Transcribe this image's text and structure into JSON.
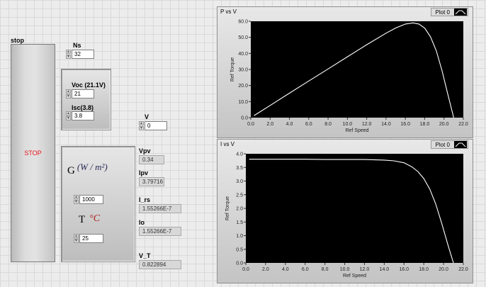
{
  "stop": {
    "label": "stop",
    "button_text": "STOP"
  },
  "ns": {
    "label": "Ns",
    "value": "32"
  },
  "voc": {
    "label": "Voc (21.1V)",
    "value": "21"
  },
  "isc": {
    "label": "Isc(3.8)",
    "value": "3.8"
  },
  "v": {
    "label": "V",
    "value": "0"
  },
  "g": {
    "symbol": "G",
    "unit": "(W / m²)",
    "value": "1000"
  },
  "t": {
    "symbol": "T",
    "unit": "°C",
    "value": "25"
  },
  "indicators": {
    "vpv": {
      "label": "Vpv",
      "value": "0.34"
    },
    "ipv": {
      "label": "Ipv",
      "value": "3.79716"
    },
    "i_rs": {
      "label": "I_rs",
      "value": "1.55266E-7"
    },
    "io": {
      "label": "Io",
      "value": "1.55266E-7"
    },
    "v_t": {
      "label": "V_T",
      "value": "0.822894"
    }
  },
  "colors": {
    "plot_bg": "#000000",
    "trace": "#ffffff",
    "stop_text": "#e8141b"
  },
  "charts": {
    "pv": {
      "title": "P vs V",
      "legend": "Plot 0"
    },
    "iv": {
      "title": "I vs V",
      "legend": "Plot 0"
    }
  },
  "chart_data": [
    {
      "type": "line",
      "title": "P vs V",
      "xlabel": "Ref  Speed",
      "ylabel": "Ref Torque",
      "xlim": [
        0,
        22
      ],
      "ylim": [
        0,
        60
      ],
      "xticks": [
        0.0,
        2.0,
        4.0,
        6.0,
        8.0,
        10.0,
        12.0,
        14.0,
        16.0,
        18.0,
        20.0,
        22.0
      ],
      "yticks": [
        0.0,
        10.0,
        20.0,
        30.0,
        40.0,
        50.0,
        60.0
      ],
      "grid": false,
      "series": [
        {
          "name": "Plot 0",
          "x": [
            0.34,
            2,
            4,
            6,
            8,
            10,
            12,
            14,
            15,
            16,
            16.8,
            17.4,
            18,
            18.6,
            19.2,
            19.8,
            20.4,
            21
          ],
          "y": [
            1.3,
            7.6,
            15.2,
            22.8,
            30.3,
            37.9,
            45.4,
            52.6,
            55.8,
            58.3,
            59.0,
            58.3,
            55.7,
            50.4,
            41.7,
            29.1,
            14.4,
            0
          ]
        }
      ]
    },
    {
      "type": "line",
      "title": "I vs V",
      "xlabel": "Ref  Speed",
      "ylabel": "Ref Torque",
      "xlim": [
        0,
        22
      ],
      "ylim": [
        0,
        4
      ],
      "xticks": [
        0.0,
        2.0,
        4.0,
        6.0,
        8.0,
        10.0,
        12.0,
        14.0,
        16.0,
        18.0,
        20.0,
        22.0
      ],
      "yticks": [
        0.0,
        0.5,
        1.0,
        1.5,
        2.0,
        2.5,
        3.0,
        3.5,
        4.0
      ],
      "grid": false,
      "series": [
        {
          "name": "Plot 0",
          "x": [
            0.34,
            2,
            4,
            6,
            8,
            10,
            12,
            14,
            15,
            16,
            16.8,
            17.4,
            18,
            18.6,
            19.2,
            19.8,
            20.4,
            21
          ],
          "y": [
            3.8,
            3.8,
            3.8,
            3.8,
            3.79,
            3.79,
            3.79,
            3.77,
            3.74,
            3.67,
            3.52,
            3.35,
            3.09,
            2.71,
            2.17,
            1.47,
            0.71,
            0
          ]
        }
      ]
    }
  ]
}
